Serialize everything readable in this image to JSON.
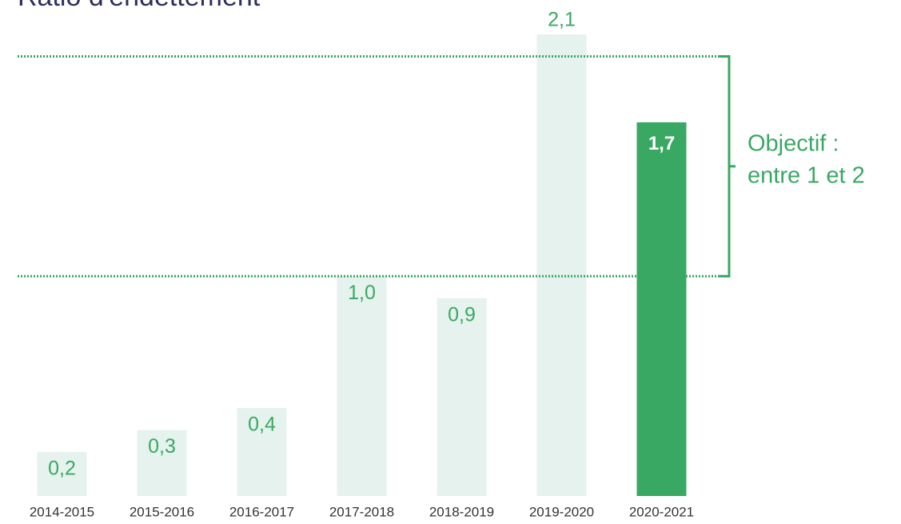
{
  "chart_data": {
    "type": "bar",
    "title": "Ratio d'endettement",
    "categories": [
      "2014-2015",
      "2015-2016",
      "2016-2017",
      "2017-2018",
      "2018-2019",
      "2019-2020",
      "2020-2021"
    ],
    "values": [
      0.2,
      0.3,
      0.4,
      1.0,
      0.9,
      2.1,
      1.7
    ],
    "value_labels": [
      "0,2",
      "0,3",
      "0,4",
      "1,0",
      "0,9",
      "2,1",
      "1,7"
    ],
    "colors": [
      "#e5f2ed",
      "#e5f2ed",
      "#e5f2ed",
      "#e5f2ed",
      "#e5f2ed",
      "#e5f2ed",
      "#38a862"
    ],
    "highlight_color": "#38a862",
    "label_color": "#3aa864",
    "ylim": [
      0,
      2.1
    ],
    "target_range": [
      1,
      2
    ],
    "annotation": [
      "Objectif :",
      "entre 1 et 2"
    ]
  }
}
